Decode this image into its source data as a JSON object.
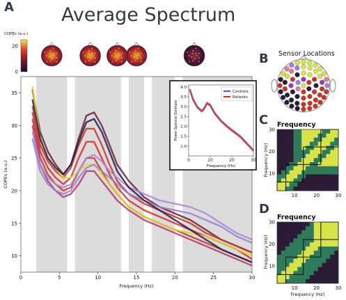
{
  "labels": {
    "panel_a": "A",
    "panel_b": "B",
    "panel_c": "C",
    "panel_d": "D",
    "main_title": "Average Spectrum",
    "sensor_title": "Sensor Locations",
    "cluster_title_c": "Frequency Clusters",
    "cluster_title_d": "Frequency Clusters",
    "colorbar_label": "COPEs (a.u.)"
  },
  "colors": {
    "controls": "#5b5fc7",
    "patients": "#d12e2e",
    "shade": "#dcdcdc",
    "matrix_low": "#2b1b35",
    "matrix_mid": "#2f7a5a",
    "matrix_high": "#d8e34a"
  },
  "chart_data": [
    {
      "type": "line",
      "xlabel": "Frequency (Hz)",
      "ylabel": "COPEs (a.u.)",
      "xlim": [
        0,
        30
      ],
      "ylim": [
        7.5,
        37.5
      ],
      "xticks": [
        0,
        5,
        10,
        15,
        20,
        25,
        30
      ],
      "yticks": [
        10,
        15,
        20,
        25,
        30,
        35
      ],
      "shaded_bands": [
        [
          2,
          6
        ],
        [
          7,
          13
        ],
        [
          14,
          16
        ],
        [
          17,
          20
        ],
        [
          21,
          30
        ]
      ],
      "colorbar": {
        "ticks": [
          0,
          20
        ],
        "range": [
          0,
          25
        ]
      },
      "topomap_positions_hz": [
        4,
        9,
        12.5,
        15,
        22.5
      ],
      "series": [
        {
          "color": "#6a1f3a",
          "points": [
            [
              1.5,
              35.5
            ],
            [
              2.5,
              29
            ],
            [
              3.5,
              26
            ],
            [
              4.5,
              24
            ],
            [
              5.5,
              22.5
            ],
            [
              6.5,
              24
            ],
            [
              7.5,
              28
            ],
            [
              8.5,
              31.5
            ],
            [
              9.5,
              32
            ],
            [
              10.5,
              30
            ],
            [
              11.5,
              27
            ],
            [
              12.5,
              24
            ],
            [
              14,
              21.5
            ],
            [
              16,
              19
            ],
            [
              18,
              17.5
            ],
            [
              20,
              16.5
            ],
            [
              22,
              15.5
            ],
            [
              24,
              14
            ],
            [
              26,
              12.5
            ],
            [
              28,
              11.5
            ],
            [
              30,
              10.5
            ]
          ]
        },
        {
          "color": "#c0392b",
          "points": [
            [
              1.5,
              33
            ],
            [
              2.5,
              27
            ],
            [
              3.5,
              24.5
            ],
            [
              4.5,
              23
            ],
            [
              5.5,
              22
            ],
            [
              6.5,
              23.5
            ],
            [
              7.5,
              27
            ],
            [
              8.5,
              29.5
            ],
            [
              9.5,
              29.5
            ],
            [
              10.5,
              27
            ],
            [
              11.5,
              24
            ],
            [
              12.5,
              21.5
            ],
            [
              14,
              19.5
            ],
            [
              16,
              18
            ],
            [
              18,
              17
            ],
            [
              20,
              16
            ],
            [
              22,
              15
            ],
            [
              24,
              13.5
            ],
            [
              26,
              12.5
            ],
            [
              28,
              11.5
            ],
            [
              30,
              10.5
            ]
          ]
        },
        {
          "color": "#d12e2e",
          "points": [
            [
              1.5,
              32
            ],
            [
              2.5,
              26
            ],
            [
              3.5,
              23.5
            ],
            [
              4.5,
              22
            ],
            [
              5.5,
              21
            ],
            [
              6.5,
              22
            ],
            [
              7.5,
              25
            ],
            [
              8.5,
              27.5
            ],
            [
              9.5,
              27.5
            ],
            [
              10.5,
              25
            ],
            [
              11.5,
              22.5
            ],
            [
              12.5,
              20.5
            ],
            [
              14,
              18.5
            ],
            [
              16,
              17
            ],
            [
              18,
              16
            ],
            [
              20,
              15
            ],
            [
              22,
              14
            ],
            [
              24,
              13
            ],
            [
              26,
              12
            ],
            [
              28,
              11
            ],
            [
              30,
              9.5
            ]
          ]
        },
        {
          "color": "#c0392b",
          "points": [
            [
              1.5,
              31
            ],
            [
              2.5,
              25
            ],
            [
              3.5,
              22.5
            ],
            [
              4.5,
              21
            ],
            [
              5.5,
              20
            ],
            [
              6.5,
              20.5
            ],
            [
              7.5,
              23
            ],
            [
              8.5,
              25
            ],
            [
              9.5,
              25
            ],
            [
              10.5,
              23
            ],
            [
              11.5,
              21
            ],
            [
              12.5,
              19.5
            ],
            [
              14,
              17.5
            ],
            [
              16,
              16
            ],
            [
              18,
              15
            ],
            [
              20,
              14
            ],
            [
              22,
              13
            ],
            [
              24,
              12
            ],
            [
              26,
              11
            ],
            [
              28,
              10
            ],
            [
              30,
              9
            ]
          ]
        },
        {
          "color": "#b03a6a",
          "points": [
            [
              1.5,
              30
            ],
            [
              2.5,
              24
            ],
            [
              3.5,
              21.5
            ],
            [
              4.5,
              20
            ],
            [
              5.5,
              19
            ],
            [
              6.5,
              19.5
            ],
            [
              7.5,
              21
            ],
            [
              8.5,
              23
            ],
            [
              9.5,
              23
            ],
            [
              10.5,
              21.5
            ],
            [
              11.5,
              20
            ],
            [
              12.5,
              18.5
            ],
            [
              14,
              17
            ],
            [
              16,
              15.5
            ],
            [
              18,
              14.5
            ],
            [
              20,
              13.5
            ],
            [
              22,
              12.5
            ],
            [
              24,
              11.5
            ],
            [
              26,
              10.5
            ],
            [
              28,
              9.5
            ],
            [
              30,
              8.5
            ]
          ]
        },
        {
          "color": "#e0d62a",
          "points": [
            [
              1.5,
              36
            ],
            [
              2.5,
              28
            ],
            [
              3.5,
              25
            ],
            [
              4.5,
              23.5
            ],
            [
              5.5,
              22
            ],
            [
              6.5,
              22
            ],
            [
              7.5,
              23
            ],
            [
              8.5,
              24
            ],
            [
              9.5,
              24
            ],
            [
              10.5,
              22.5
            ],
            [
              11.5,
              21
            ],
            [
              12.5,
              19.5
            ],
            [
              14,
              17.5
            ],
            [
              16,
              16
            ],
            [
              18,
              15
            ],
            [
              20,
              14
            ],
            [
              22,
              13.5
            ],
            [
              24,
              13
            ],
            [
              26,
              12
            ],
            [
              28,
              11
            ],
            [
              30,
              10
            ]
          ]
        },
        {
          "color": "#a888d8",
          "points": [
            [
              1.5,
              29
            ],
            [
              2.5,
              24
            ],
            [
              3.5,
              22
            ],
            [
              4.5,
              21
            ],
            [
              5.5,
              20.5
            ],
            [
              6.5,
              21
            ],
            [
              7.5,
              23
            ],
            [
              8.5,
              25
            ],
            [
              9.5,
              25.5
            ],
            [
              10.5,
              24.5
            ],
            [
              11.5,
              23
            ],
            [
              12.5,
              22
            ],
            [
              14,
              20.5
            ],
            [
              16,
              19.5
            ],
            [
              18,
              18.5
            ],
            [
              20,
              18
            ],
            [
              22,
              17.5
            ],
            [
              24,
              16.5
            ],
            [
              26,
              15
            ],
            [
              28,
              13.5
            ],
            [
              30,
              12.5
            ]
          ]
        },
        {
          "color": "#9a7fd0",
          "points": [
            [
              1.5,
              28
            ],
            [
              2.5,
              23
            ],
            [
              3.5,
              21
            ],
            [
              4.5,
              20
            ],
            [
              5.5,
              19.5
            ],
            [
              6.5,
              20
            ],
            [
              7.5,
              22
            ],
            [
              8.5,
              23.5
            ],
            [
              9.5,
              24
            ],
            [
              10.5,
              23
            ],
            [
              11.5,
              22
            ],
            [
              12.5,
              21
            ],
            [
              14,
              19.5
            ],
            [
              16,
              18.5
            ],
            [
              18,
              17.5
            ],
            [
              20,
              17
            ],
            [
              22,
              16.5
            ],
            [
              24,
              15.5
            ],
            [
              26,
              14.5
            ],
            [
              28,
              13
            ],
            [
              30,
              12
            ]
          ]
        },
        {
          "color": "#2a1a4a",
          "points": [
            [
              1.5,
              34
            ],
            [
              2.5,
              28
            ],
            [
              3.5,
              25
            ],
            [
              4.5,
              23.5
            ],
            [
              5.5,
              22.5
            ],
            [
              6.5,
              24
            ],
            [
              7.5,
              27.5
            ],
            [
              8.5,
              30.5
            ],
            [
              9.5,
              31
            ],
            [
              10.5,
              29
            ],
            [
              11.5,
              26
            ],
            [
              12.5,
              23
            ],
            [
              14,
              20.5
            ],
            [
              16,
              18.5
            ],
            [
              18,
              17
            ],
            [
              20,
              15.5
            ],
            [
              22,
              14
            ],
            [
              24,
              12.5
            ],
            [
              26,
              11
            ],
            [
              28,
              10
            ],
            [
              30,
              9
            ]
          ]
        }
      ]
    },
    {
      "type": "line",
      "xlabel": "Frequency (Hz)",
      "ylabel": "Power Spectral Estimate",
      "xlim": [
        0,
        30
      ],
      "ylim": [
        0.5,
        4.1
      ],
      "xticks": [
        0,
        10,
        20,
        30
      ],
      "yticks": [
        1.0,
        1.5,
        2.0,
        2.5,
        3.0,
        3.5,
        4.0
      ],
      "legend": [
        "Controls",
        "Patients"
      ],
      "legend_position": "top-right",
      "series": [
        {
          "name": "Controls",
          "color": "#5b5fc7",
          "points": [
            [
              0.5,
              3.9
            ],
            [
              2,
              3.4
            ],
            [
              4,
              3.0
            ],
            [
              6,
              2.8
            ],
            [
              7,
              2.9
            ],
            [
              8.5,
              3.2
            ],
            [
              10,
              3.1
            ],
            [
              12,
              2.7
            ],
            [
              15,
              2.3
            ],
            [
              18,
              2.0
            ],
            [
              21,
              1.75
            ],
            [
              24,
              1.5
            ],
            [
              27,
              1.15
            ],
            [
              30,
              0.8
            ]
          ]
        },
        {
          "name": "Patients",
          "color": "#d12e2e",
          "points": [
            [
              0.5,
              3.85
            ],
            [
              2,
              3.35
            ],
            [
              4,
              2.95
            ],
            [
              6,
              2.75
            ],
            [
              7,
              2.85
            ],
            [
              8.5,
              3.15
            ],
            [
              10,
              3.05
            ],
            [
              12,
              2.65
            ],
            [
              15,
              2.25
            ],
            [
              18,
              1.95
            ],
            [
              21,
              1.7
            ],
            [
              24,
              1.45
            ],
            [
              27,
              1.1
            ],
            [
              30,
              0.75
            ]
          ]
        }
      ]
    },
    {
      "type": "heatmap",
      "title": "Frequency Clusters",
      "xlabel": "",
      "ylabel": "Frequency (Hz)",
      "xticks": [
        10,
        20,
        30
      ],
      "yticks": [
        10,
        20,
        30
      ],
      "grid_size": 15,
      "cluster_boxes_hz": [
        [
          2,
          6
        ],
        [
          6,
          14
        ],
        [
          14,
          22
        ],
        [
          22,
          30
        ]
      ]
    },
    {
      "type": "heatmap",
      "title": "Frequency Clusters",
      "xlabel": "Frequency (Hz)",
      "ylabel": "Frequency (Hz)",
      "xticks": [
        10,
        20,
        30
      ],
      "yticks": [
        10,
        20,
        30
      ],
      "grid_size": 15,
      "cluster_boxes_hz": [
        [
          2,
          6
        ],
        [
          6,
          14
        ],
        [
          14,
          22
        ],
        [
          22,
          30
        ]
      ]
    }
  ]
}
